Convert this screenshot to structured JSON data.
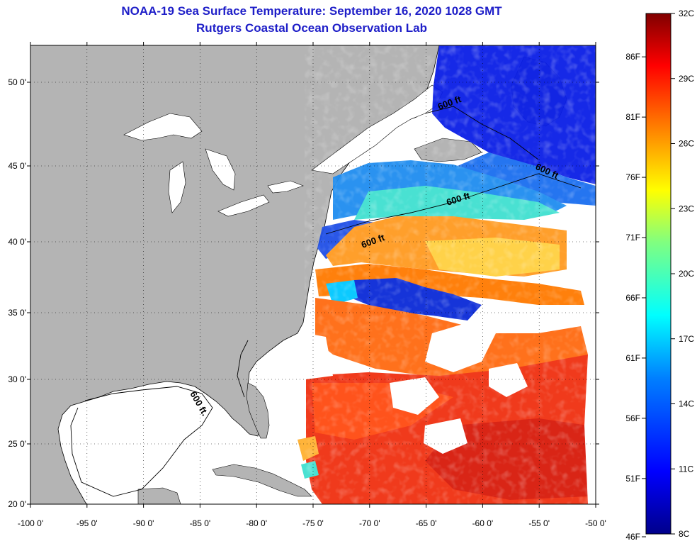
{
  "title_line1": "NOAA-19 Sea Surface Temperature:  September 16, 2020 1028 GMT",
  "title_line2": "Rutgers Coastal Ocean Observation Lab",
  "longitude_ticks": [
    "-100 0'",
    "-95 0'",
    "-90 0'",
    "-85 0'",
    "-80 0'",
    "-75 0'",
    "-70 0'",
    "-65 0'",
    "-60 0'",
    "-55 0'",
    "-50 0'"
  ],
  "latitude_ticks": [
    "20 0'",
    "25 0'",
    "30 0'",
    "35 0'",
    "40 0'",
    "45 0'",
    "50 0'"
  ],
  "colorbar": {
    "celsius": [
      "8C",
      "11C",
      "14C",
      "17C",
      "20C",
      "23C",
      "26C",
      "29C",
      "32C"
    ],
    "fahrenheit": [
      "46F",
      "51F",
      "56F",
      "61F",
      "66F",
      "71F",
      "76F",
      "81F",
      "86F"
    ],
    "colors": [
      "#00008b",
      "#0000ff",
      "#0080ff",
      "#00ffff",
      "#80ff80",
      "#ffff00",
      "#ff8000",
      "#ff0000",
      "#800000"
    ]
  },
  "contour_labels": [
    "600 ft",
    "600 ft",
    "600 ft",
    "600 ft",
    "600 ft."
  ],
  "colors": {
    "land": "#b4b4b4",
    "water_no_data": "#ffffff",
    "title": "#1e1ec8",
    "grid": "#000000"
  }
}
